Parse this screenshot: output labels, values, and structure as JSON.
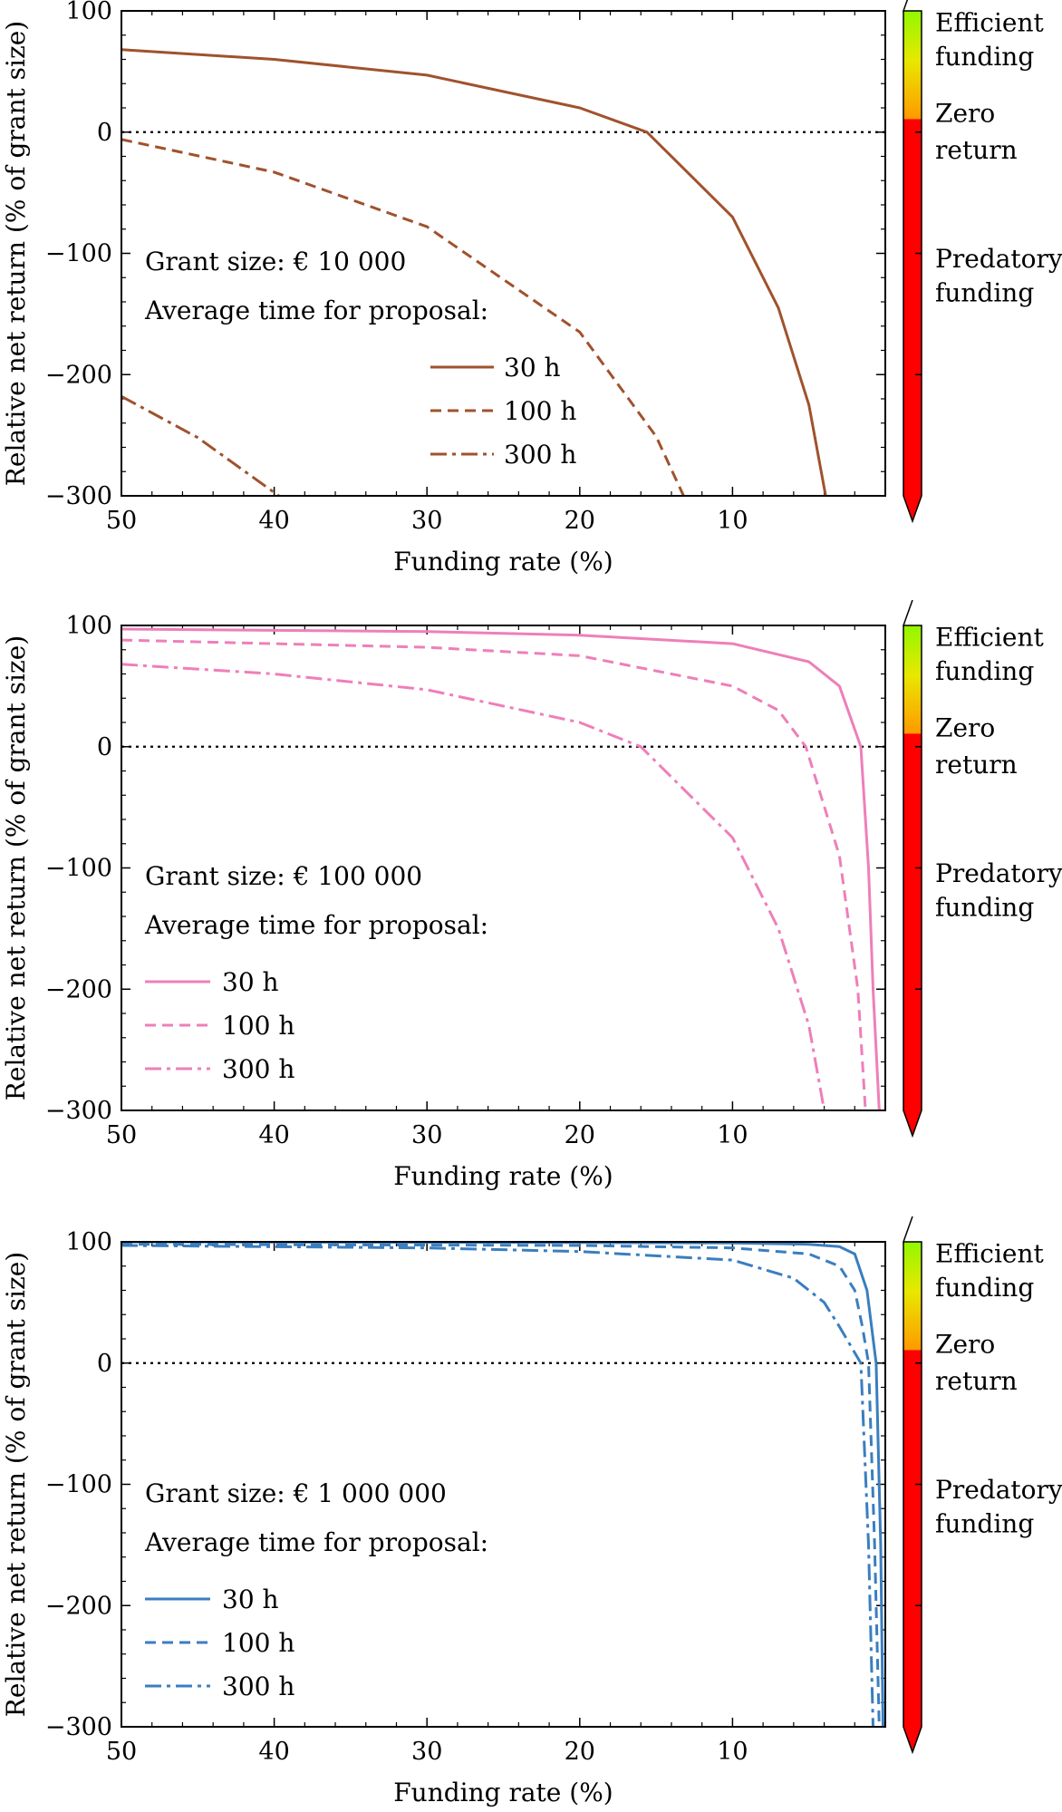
{
  "chart_data": [
    {
      "type": "line",
      "panel": "top",
      "title": "",
      "xlabel": "Funding rate (%)",
      "ylabel": "Relative net return (% of grant size)",
      "xlim": [
        50,
        0
      ],
      "ylim": [
        -300,
        100
      ],
      "xticks": [
        50,
        40,
        30,
        20,
        10
      ],
      "yticks": [
        100,
        0,
        -100,
        -200,
        -300
      ],
      "zero_line": "dotted",
      "color": "#a0522d",
      "annotation_grant": "Grant size: € 10 000",
      "annotation_time": "Average time for proposal:",
      "legend_position": "center-left",
      "series": [
        {
          "name": "30 h",
          "style": "solid",
          "x": [
            50,
            40,
            30,
            20,
            15.6,
            10,
            7,
            5,
            3.9
          ],
          "y": [
            68,
            60,
            47,
            20,
            0,
            -70,
            -145,
            -225,
            -300
          ]
        },
        {
          "name": "100 h",
          "style": "dashed",
          "x": [
            50,
            40,
            30,
            20,
            15,
            13.2
          ],
          "y": [
            -6,
            -33,
            -78,
            -165,
            -251,
            -300
          ]
        },
        {
          "name": "300 h",
          "style": "dashdot",
          "x": [
            50,
            45,
            39.7
          ],
          "y": [
            -218,
            -252,
            -300
          ]
        }
      ]
    },
    {
      "type": "line",
      "panel": "middle",
      "title": "",
      "xlabel": "Funding rate (%)",
      "ylabel": "Relative net return (% of grant size)",
      "xlim": [
        50,
        0
      ],
      "ylim": [
        -300,
        100
      ],
      "xticks": [
        50,
        40,
        30,
        20,
        10
      ],
      "yticks": [
        100,
        0,
        -100,
        -200,
        -300
      ],
      "zero_line": "dotted",
      "color": "#ee7fb9",
      "annotation_grant": "Grant size: € 100 000",
      "annotation_time": "Average time for proposal:",
      "legend_position": "lower-left",
      "series": [
        {
          "name": "30 h",
          "style": "solid",
          "x": [
            50,
            30,
            20,
            10,
            5,
            3,
            1.6,
            1.1,
            0.8,
            0.4
          ],
          "y": [
            97,
            95,
            92,
            85,
            70,
            50,
            0,
            -100,
            -200,
            -300
          ]
        },
        {
          "name": "100 h",
          "style": "dashed",
          "x": [
            50,
            30,
            20,
            10,
            7,
            5.2,
            3,
            1.8,
            1.3
          ],
          "y": [
            88,
            82,
            75,
            50,
            30,
            0,
            -90,
            -200,
            -300
          ]
        },
        {
          "name": "300 h",
          "style": "dashdot",
          "x": [
            50,
            40,
            30,
            20,
            16,
            10,
            7,
            5,
            4
          ],
          "y": [
            68,
            60,
            47,
            20,
            0,
            -75,
            -150,
            -230,
            -300
          ]
        }
      ]
    },
    {
      "type": "line",
      "panel": "bottom",
      "title": "",
      "xlabel": "Funding rate (%)",
      "ylabel": "Relative net return (% of grant size)",
      "xlim": [
        50,
        0
      ],
      "ylim": [
        -300,
        100
      ],
      "xticks": [
        50,
        40,
        30,
        20,
        10
      ],
      "yticks": [
        100,
        0,
        -100,
        -200,
        -300
      ],
      "zero_line": "dotted",
      "color": "#3a7ebf",
      "annotation_grant": "Grant size: € 1 000 000",
      "annotation_time": "Average time for proposal:",
      "legend_position": "lower-left",
      "series": [
        {
          "name": "30 h",
          "style": "solid",
          "x": [
            50,
            20,
            10,
            5,
            3,
            2,
            1.2,
            0.6,
            0.3,
            0.15
          ],
          "y": [
            100,
            99.5,
            99,
            98,
            96,
            90,
            60,
            0,
            -150,
            -300
          ]
        },
        {
          "name": "100 h",
          "style": "dashed",
          "x": [
            50,
            20,
            10,
            5,
            3,
            2,
            1.5,
            1.1,
            0.7,
            0.4
          ],
          "y": [
            98,
            97,
            95,
            90,
            80,
            60,
            30,
            0,
            -150,
            -300
          ]
        },
        {
          "name": "300 h",
          "style": "dashdot",
          "x": [
            50,
            30,
            20,
            10,
            6,
            4,
            3,
            1.6,
            1.1,
            0.8
          ],
          "y": [
            97,
            95,
            92,
            85,
            70,
            50,
            30,
            0,
            -150,
            -300
          ]
        }
      ]
    }
  ],
  "colorbar": {
    "labels": [
      {
        "text": "Efficient",
        "y": 90
      },
      {
        "text": "funding",
        "y": 62
      },
      {
        "text": "Zero",
        "y": 15
      },
      {
        "text": "return",
        "y": -15
      },
      {
        "text": "Predatory",
        "y": -105
      },
      {
        "text": "funding",
        "y": -133
      }
    ],
    "colors": {
      "red": "#ff0000",
      "orange": "#ff9900",
      "yellow": "#e8e800",
      "green": "#66ff00"
    }
  }
}
